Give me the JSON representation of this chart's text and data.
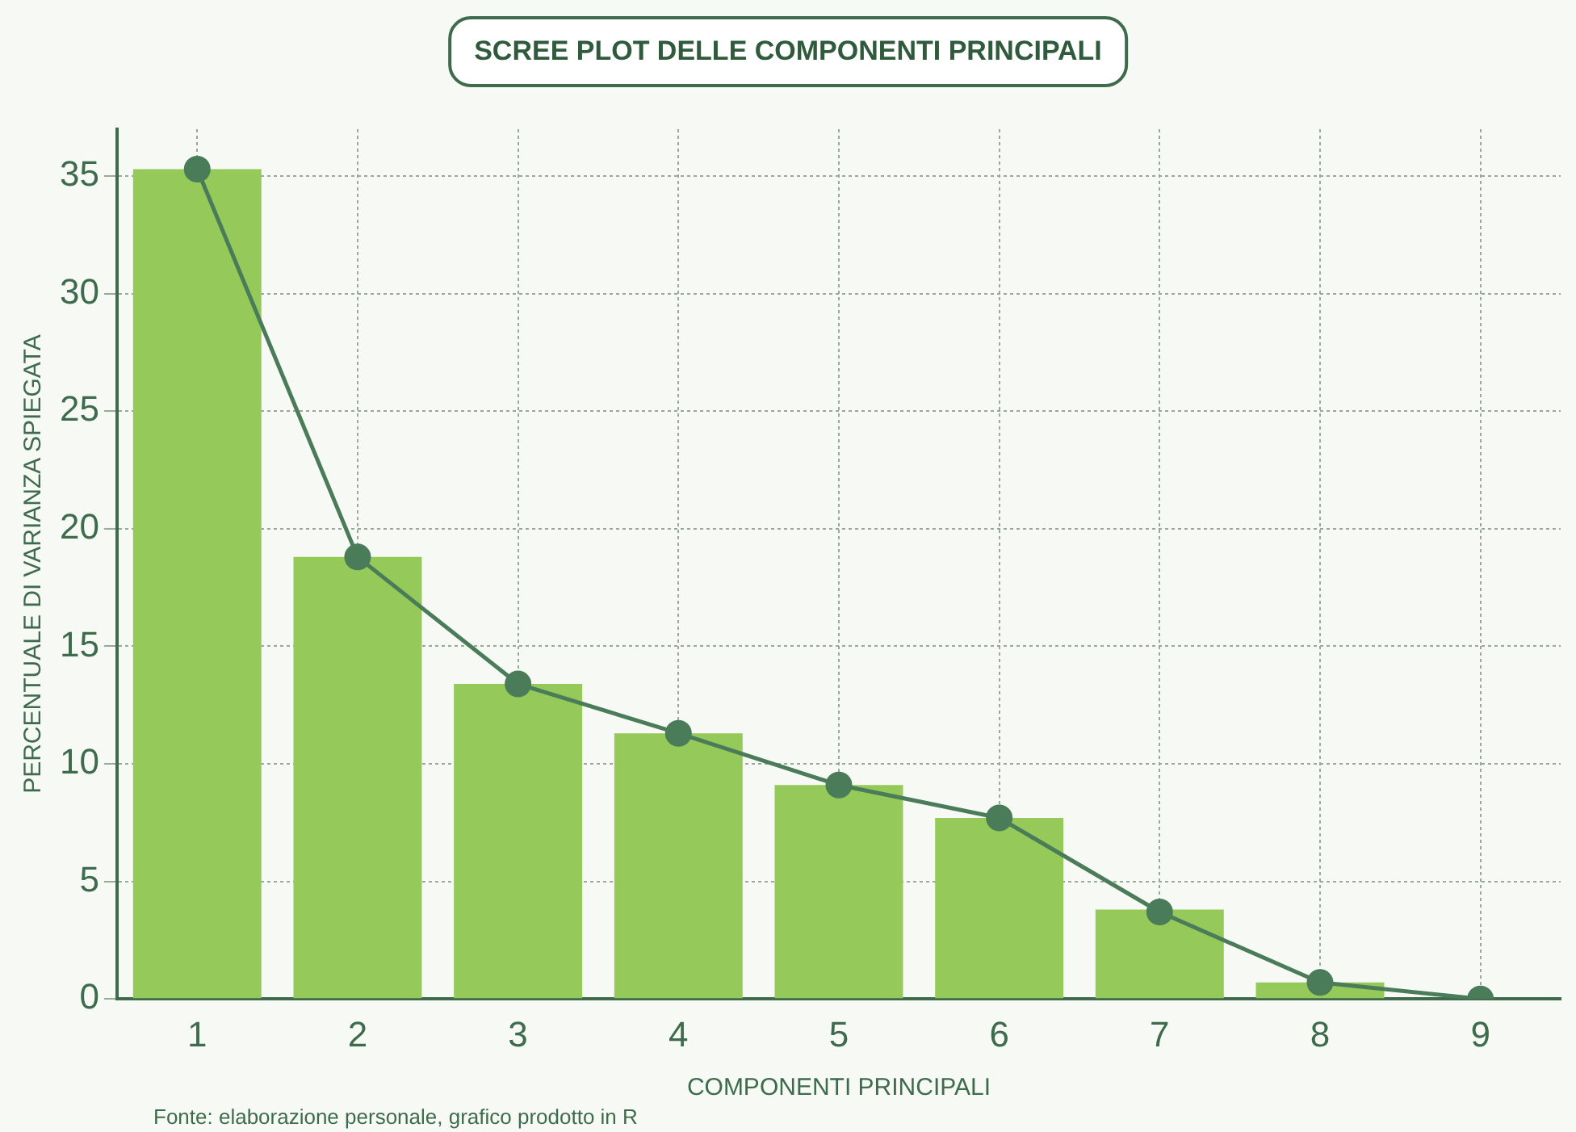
{
  "chart_data": {
    "type": "bar",
    "title": "SCREE PLOT DELLE COMPONENTI PRINCIPALI",
    "xlabel": "COMPONENTI PRINCIPALI",
    "ylabel": "PERCENTUALE DI VARIANZA SPIEGATA",
    "annotations": [
      "Fonte: elaborazione personale, grafico prodotto in R"
    ],
    "categories": [
      "1",
      "2",
      "3",
      "4",
      "5",
      "6",
      "7",
      "8",
      "9"
    ],
    "series": [
      {
        "color": "#95c95a",
        "values": [
          35.3,
          18.8,
          13.4,
          11.3,
          9.1,
          7.7,
          3.8,
          0.7,
          0
        ]
      },
      {
        "type": "line",
        "color": "#4a7c59",
        "values": [
          35.3,
          18.8,
          13.4,
          11.3,
          9.1,
          7.7,
          3.7,
          0.7,
          0
        ]
      }
    ],
    "ylim": [
      0,
      37
    ],
    "yticks": [
      0,
      5,
      10,
      15,
      20,
      25,
      30,
      35
    ],
    "grid": true,
    "legend": false,
    "marker": "circle",
    "line_style": "solid"
  }
}
